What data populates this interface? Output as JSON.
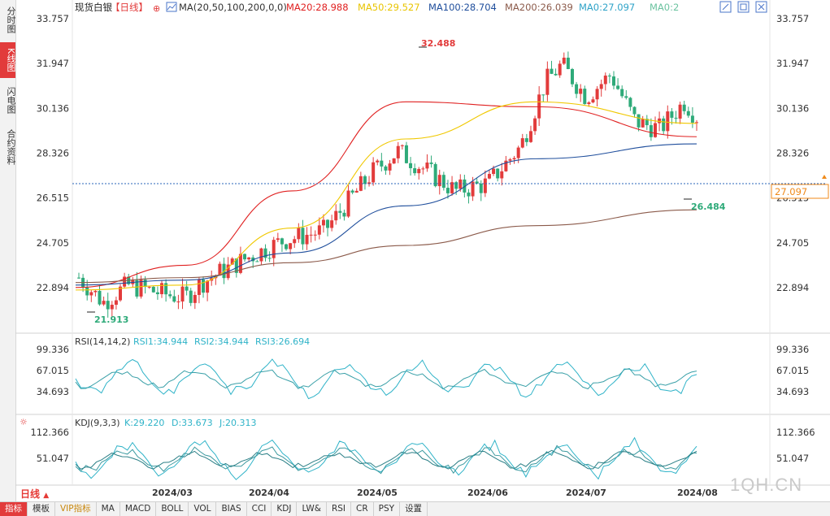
{
  "sidebar": {
    "tabs": [
      {
        "label": "分时图",
        "active": false
      },
      {
        "label": "K线图",
        "active": true
      },
      {
        "label": "闪电图",
        "active": false
      },
      {
        "label": "合约资料",
        "active": false
      }
    ]
  },
  "header": {
    "instrument": "现货白银",
    "period_tag": "【日线】",
    "ma_params": "MA(20,50,100,200,0,0)",
    "ma20": "MA20:28.988",
    "ma50": "MA50:29.527",
    "ma100": "MA100:28.704",
    "ma200": "MA200:26.039",
    "ma0a": "MA0:27.097",
    "ma0b": "MA0:2"
  },
  "rsi_header": {
    "name": "RSI(14,14,2)",
    "rsi1": "RSI1:34.944",
    "rsi2": "RSI2:34.944",
    "rsi3": "RSI3:26.694"
  },
  "kdj_header": {
    "name": "KDJ(9,3,3)",
    "k": "K:29.220",
    "d": "D:33.673",
    "j": "J:20.313"
  },
  "price_axis": [
    "33.757",
    "31.947",
    "30.136",
    "28.326",
    "26.515",
    "24.705",
    "22.894"
  ],
  "rsi_axis": [
    "99.336",
    "67.015",
    "34.693"
  ],
  "kdj_axis": [
    "112.366",
    "51.047"
  ],
  "dates": [
    "2024/03",
    "2024/04",
    "2024/05",
    "2024/06",
    "2024/07",
    "2024/08"
  ],
  "annotations": {
    "high": "32.488",
    "low_start": "21.913",
    "low_recent": "26.484",
    "current_price": "27.097"
  },
  "period_label": "日线",
  "bottom_tabs": [
    "指标",
    "模板",
    "VIP指标",
    "MA",
    "MACD",
    "BOLL",
    "VOL",
    "BIAS",
    "CCI",
    "KDJ",
    "LW&",
    "RSI",
    "CR",
    "PSY",
    "设置"
  ],
  "watermark": "1QH.CN",
  "colors": {
    "up": "#e23b3b",
    "down": "#2eaa79",
    "ma20": "#e02020",
    "ma50": "#f0c800",
    "ma100": "#1f4e9c",
    "ma200": "#8b5a4a",
    "rsi": "#2fb3c8"
  },
  "chart_data": {
    "type": "line",
    "title": "现货白银 日线",
    "x": [
      "2024/03",
      "2024/04",
      "2024/05",
      "2024/06",
      "2024/07",
      "2024/08"
    ],
    "ylim": [
      21.5,
      34.0
    ],
    "series": [
      {
        "name": "MA20",
        "values": [
          22.9,
          23.8,
          26.8,
          30.4,
          30.2,
          28.99
        ]
      },
      {
        "name": "MA50",
        "values": [
          22.8,
          23.0,
          25.3,
          28.9,
          30.4,
          29.53
        ]
      },
      {
        "name": "MA100",
        "values": [
          23.0,
          23.2,
          24.3,
          26.2,
          28.1,
          28.7
        ]
      },
      {
        "name": "MA200",
        "values": [
          23.1,
          23.3,
          23.9,
          24.6,
          25.4,
          26.04
        ]
      }
    ],
    "price_close_approx": [
      22.2,
      24.8,
      26.8,
      29.4,
      29.0,
      27.1
    ],
    "high": 32.488,
    "low": 21.913,
    "last": 27.097
  }
}
